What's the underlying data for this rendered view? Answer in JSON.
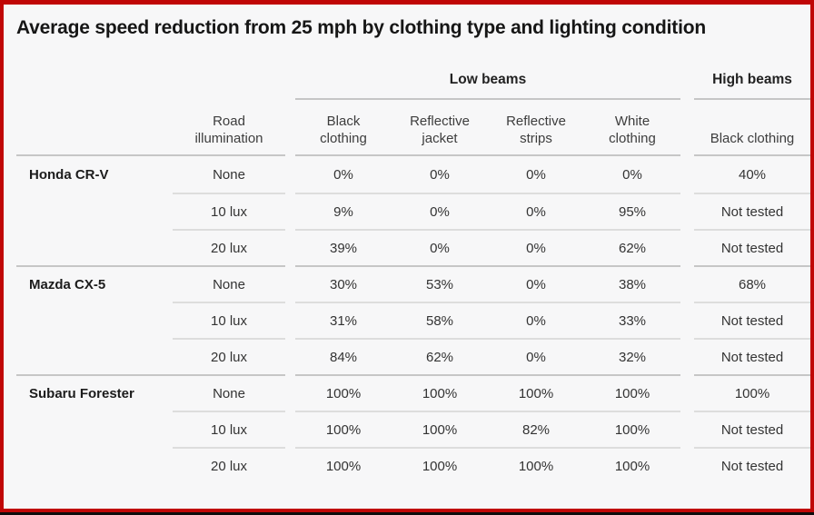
{
  "page": {
    "colors": {
      "outer_border": "#c00606",
      "bottom_strip": "#0d0d0d",
      "background": "#f7f7f8",
      "line_strong": "#c6c6c6",
      "line_light": "#dddddd",
      "title_text": "#161616",
      "body_text": "#333333"
    }
  },
  "chart_data": {
    "type": "table",
    "title": "Average speed reduction from 25 mph by clothing type and lighting condition",
    "column_groups": [
      {
        "label": "Low beams",
        "span": 4
      },
      {
        "label": "High beams",
        "span": 1
      }
    ],
    "headers": {
      "road_illumination": "Road\nillumination",
      "low_black_clothing": "Black\nclothing",
      "reflective_jacket": "Reflective\njacket",
      "reflective_strips": "Reflective\nstrips",
      "white_clothing": "White\nclothing",
      "high_black_clothing": "Black clothing"
    },
    "rows": [
      {
        "vehicle": "Honda CR-V",
        "cells": [
          "None",
          "0%",
          "0%",
          "0%",
          "0%",
          "40%"
        ]
      },
      {
        "vehicle": "",
        "cells": [
          "10 lux",
          "9%",
          "0%",
          "0%",
          "95%",
          "Not tested"
        ]
      },
      {
        "vehicle": "",
        "cells": [
          "20 lux",
          "39%",
          "0%",
          "0%",
          "62%",
          "Not tested"
        ]
      },
      {
        "vehicle": "Mazda CX-5",
        "cells": [
          "None",
          "30%",
          "53%",
          "0%",
          "38%",
          "68%"
        ]
      },
      {
        "vehicle": "",
        "cells": [
          "10 lux",
          "31%",
          "58%",
          "0%",
          "33%",
          "Not tested"
        ]
      },
      {
        "vehicle": "",
        "cells": [
          "20 lux",
          "84%",
          "62%",
          "0%",
          "32%",
          "Not tested"
        ]
      },
      {
        "vehicle": "Subaru Forester",
        "cells": [
          "None",
          "100%",
          "100%",
          "100%",
          "100%",
          "100%"
        ]
      },
      {
        "vehicle": "",
        "cells": [
          "10 lux",
          "100%",
          "100%",
          "82%",
          "100%",
          "Not tested"
        ]
      },
      {
        "vehicle": "",
        "cells": [
          "20 lux",
          "100%",
          "100%",
          "100%",
          "100%",
          "Not tested"
        ]
      }
    ]
  }
}
